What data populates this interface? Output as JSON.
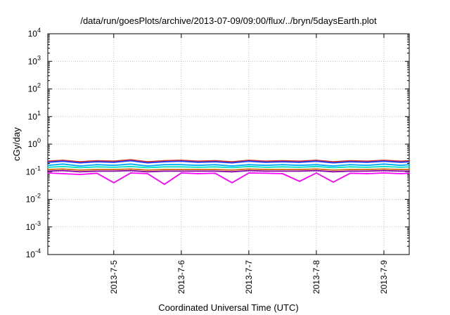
{
  "chart_data": {
    "type": "line",
    "title": "/data/run/goesPlots/archive/2013-07-09/09:00/flux/../bryn/5daysEarth.plot",
    "xlabel": "Coordinated Universal Time (UTC)",
    "ylabel": "cGy/day",
    "y_scale": "log",
    "ylim": [
      0.0001,
      10000
    ],
    "xlim": [
      "2013-07-04 00:34",
      "2013-07-09 09:00"
    ],
    "y_ticks": [
      {
        "base": "10",
        "exp": "-4",
        "value": 0.0001
      },
      {
        "base": "10",
        "exp": "-3",
        "value": 0.001
      },
      {
        "base": "10",
        "exp": "-2",
        "value": 0.01
      },
      {
        "base": "10",
        "exp": "-1",
        "value": 0.1
      },
      {
        "base": "10",
        "exp": "0",
        "value": 1
      },
      {
        "base": "10",
        "exp": "1",
        "value": 10
      },
      {
        "base": "10",
        "exp": "2",
        "value": 100
      },
      {
        "base": "10",
        "exp": "3",
        "value": 1000
      },
      {
        "base": "10",
        "exp": "4",
        "value": 10000
      }
    ],
    "x_ticks": [
      {
        "label": "2013-7-5",
        "value": "2013-07-05 00:00"
      },
      {
        "label": "2013-7-6",
        "value": "2013-07-06 00:00"
      },
      {
        "label": "2013-7-7",
        "value": "2013-07-07 00:00"
      },
      {
        "label": "2013-7-8",
        "value": "2013-07-08 00:00"
      },
      {
        "label": "2013-7-9",
        "value": "2013-07-09 00:00"
      }
    ],
    "grid": true,
    "legend": "none",
    "x": [
      "2013-07-04 00:34",
      "2013-07-04 06:00",
      "2013-07-04 12:00",
      "2013-07-04 18:00",
      "2013-07-05 00:00",
      "2013-07-05 06:00",
      "2013-07-05 12:00",
      "2013-07-05 18:00",
      "2013-07-06 00:00",
      "2013-07-06 06:00",
      "2013-07-06 12:00",
      "2013-07-06 18:00",
      "2013-07-07 00:00",
      "2013-07-07 06:00",
      "2013-07-07 12:00",
      "2013-07-07 18:00",
      "2013-07-08 00:00",
      "2013-07-08 06:00",
      "2013-07-08 12:00",
      "2013-07-08 18:00",
      "2013-07-09 00:00",
      "2013-07-09 06:00",
      "2013-07-09 09:00"
    ],
    "series": [
      {
        "color": "#d62728",
        "values": [
          0.24,
          0.26,
          0.23,
          0.25,
          0.24,
          0.27,
          0.23,
          0.25,
          0.26,
          0.24,
          0.25,
          0.23,
          0.26,
          0.24,
          0.25,
          0.24,
          0.26,
          0.23,
          0.25,
          0.24,
          0.26,
          0.24,
          0.25
        ]
      },
      {
        "color": "#1f3fff",
        "values": [
          0.22,
          0.24,
          0.21,
          0.23,
          0.22,
          0.25,
          0.21,
          0.23,
          0.24,
          0.22,
          0.23,
          0.21,
          0.24,
          0.22,
          0.23,
          0.22,
          0.24,
          0.21,
          0.23,
          0.22,
          0.24,
          0.22,
          0.23
        ]
      },
      {
        "color": "#00aaff",
        "values": [
          0.17,
          0.19,
          0.16,
          0.18,
          0.17,
          0.19,
          0.16,
          0.18,
          0.18,
          0.17,
          0.18,
          0.16,
          0.18,
          0.17,
          0.18,
          0.17,
          0.18,
          0.16,
          0.18,
          0.17,
          0.19,
          0.17,
          0.18
        ]
      },
      {
        "color": "#00e0c0",
        "values": [
          0.145,
          0.155,
          0.14,
          0.15,
          0.145,
          0.155,
          0.14,
          0.15,
          0.15,
          0.145,
          0.15,
          0.14,
          0.155,
          0.145,
          0.15,
          0.145,
          0.155,
          0.14,
          0.15,
          0.145,
          0.155,
          0.145,
          0.15
        ]
      },
      {
        "color": "#cc6600",
        "values": [
          0.12,
          0.125,
          0.115,
          0.12,
          0.12,
          0.125,
          0.115,
          0.12,
          0.12,
          0.12,
          0.12,
          0.115,
          0.125,
          0.12,
          0.12,
          0.12,
          0.125,
          0.115,
          0.12,
          0.12,
          0.125,
          0.12,
          0.12
        ]
      },
      {
        "color": "#8800aa",
        "values": [
          0.105,
          0.11,
          0.1,
          0.105,
          0.105,
          0.11,
          0.1,
          0.105,
          0.105,
          0.105,
          0.105,
          0.1,
          0.11,
          0.105,
          0.105,
          0.105,
          0.11,
          0.1,
          0.105,
          0.105,
          0.11,
          0.105,
          0.105
        ]
      },
      {
        "color": "#ff00ff",
        "values": [
          0.09,
          0.085,
          0.08,
          0.088,
          0.04,
          0.09,
          0.085,
          0.035,
          0.09,
          0.085,
          0.088,
          0.04,
          0.09,
          0.088,
          0.085,
          0.045,
          0.09,
          0.042,
          0.088,
          0.085,
          0.09,
          0.085,
          0.088
        ]
      }
    ]
  }
}
